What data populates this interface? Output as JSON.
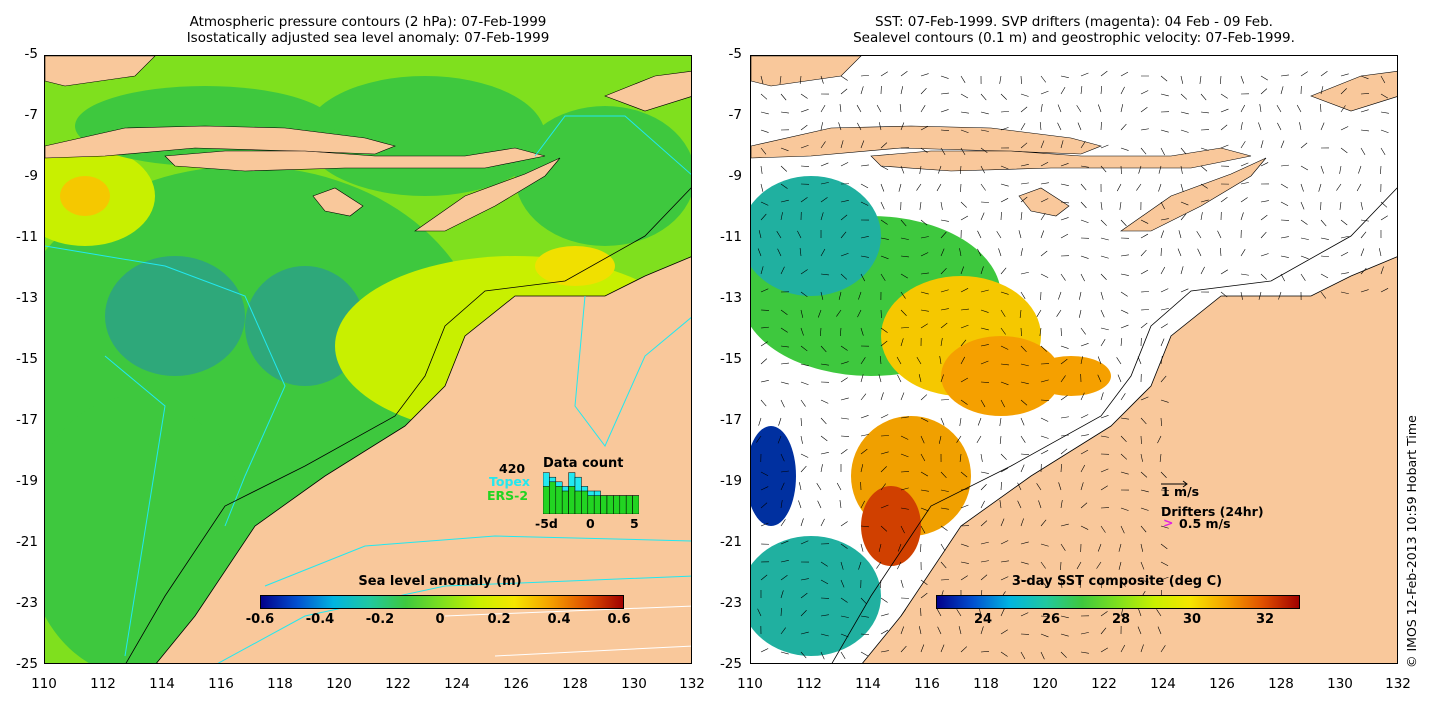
{
  "left_panel": {
    "title_line1": "Atmospheric pressure contours (2 hPa): 07-Feb-1999",
    "title_line2": "Isostatically adjusted sea level anomaly: 07-Feb-1999",
    "colorbar_title": "Sea level anomaly (m)",
    "colorbar_ticks": [
      "-0.6",
      "-0.4",
      "-0.2",
      "0",
      "0.2",
      "0.4",
      "0.6"
    ],
    "data_count": {
      "count": "420",
      "title": "Data count",
      "series_topex": "Topex",
      "series_ers2": "ERS-2",
      "axis_labels": [
        "-5d",
        "0",
        "5"
      ],
      "topex_values": [
        9,
        8,
        7,
        6,
        9,
        8,
        6,
        5,
        5,
        4,
        4,
        4,
        4,
        4,
        4
      ],
      "ers2_values": [
        6,
        7,
        6,
        5,
        6,
        5,
        5,
        4,
        4,
        4,
        4,
        4,
        4,
        4,
        4
      ]
    }
  },
  "right_panel": {
    "title_line1": "SST: 07-Feb-1999. SVP drifters (magenta): 04 Feb - 09 Feb.",
    "title_line2": "Sealevel contours (0.1 m) and geostrophic velocity: 07-Feb-1999.",
    "colorbar_title": "3-day SST composite (deg C)",
    "colorbar_ticks": [
      "24",
      "26",
      "28",
      "30",
      "32"
    ],
    "legend_velocity": "1 m/s",
    "legend_drifters": "Drifters (24hr)",
    "legend_drifter_speed": "0.5 m/s",
    "legend_drifter_symbol": ">"
  },
  "axes": {
    "y_ticks": [
      "-5",
      "-7",
      "-9",
      "-11",
      "-13",
      "-15",
      "-17",
      "-19",
      "-21",
      "-23",
      "-25"
    ],
    "x_ticks": [
      "110",
      "112",
      "114",
      "116",
      "118",
      "120",
      "122",
      "124",
      "126",
      "128",
      "130",
      "132"
    ]
  },
  "credit": "© IMOS 12-Feb-2013 10:59 Hobart Time",
  "colors": {
    "land": "#f9c89b",
    "sla_green": "#3ec83e",
    "sla_lightgreen": "#7fe01e",
    "sla_yellowgreen": "#c8f000",
    "sla_yellow": "#f5e600",
    "sla_teal": "#2ea87a",
    "topex": "#22e8f0",
    "ers2": "#22d422",
    "drifter": "#e020e0"
  }
}
